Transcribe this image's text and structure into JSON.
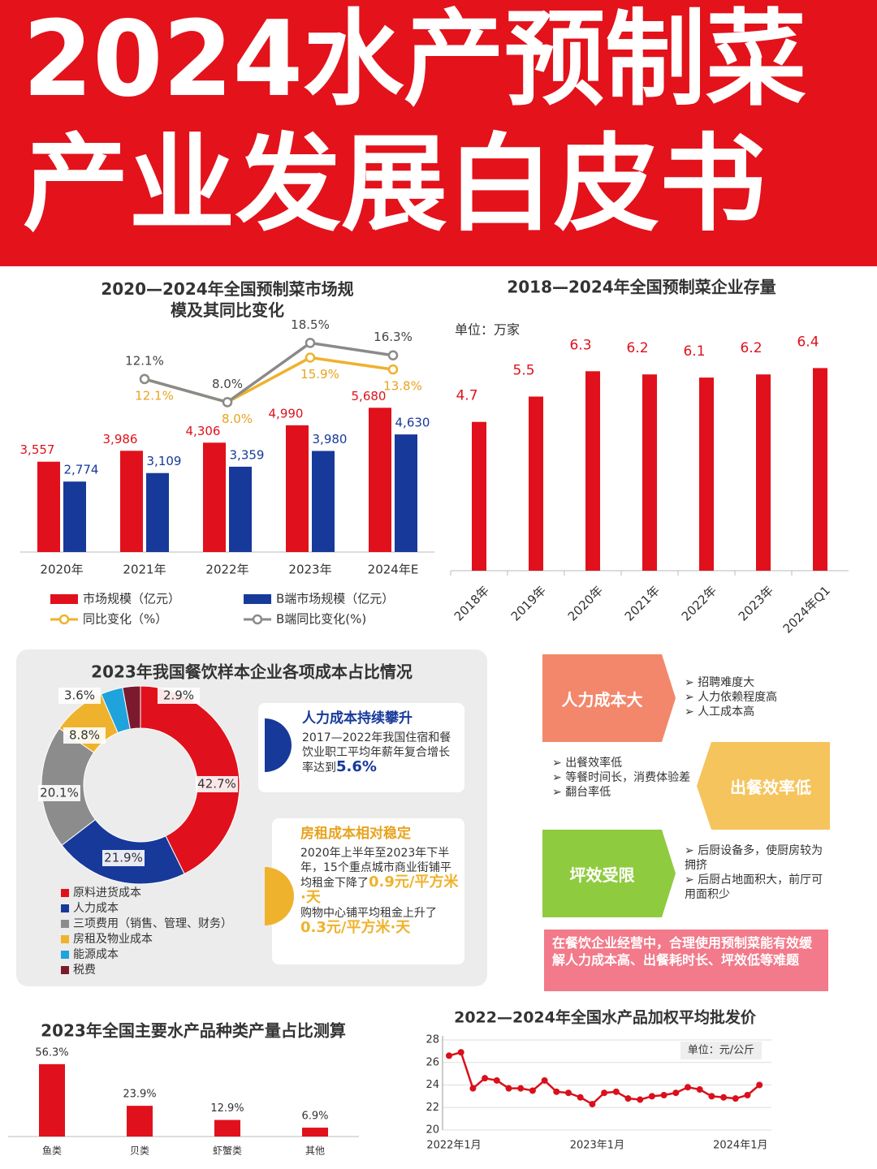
{
  "header": {
    "title_line1": "2024水产预制菜",
    "title_line2": "产业发展白皮书"
  },
  "chart_data": [
    {
      "type": "bar_line",
      "title": "2020—2024年全国预制菜市场规模及其同比变化",
      "categories": [
        "2020年",
        "2021年",
        "2022年",
        "2023年",
        "2024年E"
      ],
      "ylim": [
        0,
        7000
      ],
      "y2lim": [
        -20,
        20
      ],
      "series": [
        {
          "name": "市场规模（亿元）",
          "color": "#e0111c",
          "kind": "bar",
          "values": [
            3557,
            3986,
            4306,
            4990,
            5680
          ],
          "value_labels": [
            "3,557",
            "3,986",
            "4,306",
            "4,990",
            "5,680"
          ]
        },
        {
          "name": "B端市场规模（亿元）",
          "color": "#17399a",
          "kind": "bar",
          "values": [
            2774,
            3109,
            3359,
            3980,
            4630
          ],
          "value_labels": [
            "2,774",
            "3,109",
            "3,359",
            "3,980",
            "4,630"
          ]
        },
        {
          "name": "同比变化（%）",
          "color": "#efb22c",
          "kind": "line",
          "axis": "y2",
          "values": [
            null,
            12.1,
            8.0,
            15.9,
            13.8
          ],
          "value_labels": [
            null,
            "12.1%",
            "8.0%",
            "15.9%",
            "13.8%"
          ]
        },
        {
          "name": "B端同比变化(%)",
          "color": "#8a8a8a",
          "kind": "line",
          "axis": "y2",
          "values": [
            null,
            12.1,
            8.0,
            18.5,
            16.3
          ],
          "value_labels": [
            null,
            "12.1%",
            "8.0%",
            "18.5%",
            "16.3%"
          ]
        }
      ]
    },
    {
      "type": "bar",
      "title": "2018—2024年全国预制菜企业存量",
      "unit": "单位：万家",
      "categories": [
        "2018年",
        "2019年",
        "2020年",
        "2021年",
        "2022年",
        "2023年",
        "2024年Q1"
      ],
      "values": [
        4.7,
        5.5,
        6.3,
        6.2,
        6.1,
        6.2,
        6.4
      ],
      "color": "#e0111c",
      "ylim": [
        0,
        7
      ]
    },
    {
      "type": "donut",
      "title": "2023年我国餐饮样本企业各项成本占比情况",
      "categories": [
        "原料进货成本",
        "人力成本",
        "三项费用（销售、管理、财务）",
        "房租及物业成本",
        "能源成本",
        "税费"
      ],
      "values": [
        42.7,
        21.9,
        20.1,
        8.8,
        3.6,
        2.9
      ],
      "value_labels": [
        "42.7%",
        "21.9%",
        "20.1%",
        "8.8%",
        "3.6%",
        "2.9%"
      ],
      "colors": [
        "#e0111c",
        "#17399a",
        "#8c8c8c",
        "#efb22c",
        "#1ea3dc",
        "#7b1a2c"
      ]
    },
    {
      "type": "bar",
      "title": "2023年全国主要水产品种类产量占比测算",
      "categories": [
        "鱼类",
        "贝类",
        "虾蟹类",
        "其他"
      ],
      "values": [
        56.3,
        23.9,
        12.9,
        6.9
      ],
      "value_labels": [
        "56.3%",
        "23.9%",
        "12.9%",
        "6.9%"
      ],
      "color": "#e0111c",
      "ylim": [
        0,
        60
      ]
    },
    {
      "type": "line",
      "title": "2022—2024年全国水产品加权平均批发价",
      "unit": "单位：元/公斤",
      "categories": [
        "2022年1月",
        null,
        null,
        null,
        null,
        null,
        null,
        null,
        null,
        null,
        null,
        null,
        "2023年1月",
        null,
        null,
        null,
        null,
        null,
        null,
        null,
        null,
        null,
        null,
        null,
        "2024年1月",
        null,
        null
      ],
      "values": [
        26.6,
        26.9,
        23.7,
        24.6,
        24.4,
        23.7,
        23.7,
        23.5,
        24.4,
        23.4,
        23.3,
        22.9,
        22.3,
        23.3,
        23.4,
        22.8,
        22.7,
        23.0,
        23.1,
        23.3,
        23.8,
        23.6,
        23.0,
        22.9,
        22.8,
        23.1,
        24.0
      ],
      "color": "#d9101b",
      "ylim": [
        20,
        28
      ],
      "yticks": [
        20,
        22,
        24,
        26,
        28
      ],
      "grid": true
    }
  ],
  "cost_notes": [
    {
      "title": "人力成本持续攀升",
      "text": "2017—2022年我国住宿和餐饮业职工平均年薪年复合增长率达到",
      "highlight": "5.6%"
    },
    {
      "title": "房租成本相对稳定",
      "text1": "2020年上半年至2023年下半年，15个重点城市商业街铺平均租金下降了",
      "highlight1": "0.9元/平方米·天",
      "text2": "购物中心铺平均租金上升了",
      "highlight2": "0.3元/平方米·天"
    }
  ],
  "pain_points": [
    {
      "label": "人力成本大",
      "items": [
        "招聘难度大",
        "人力依赖程度高",
        "人工成本高"
      ]
    },
    {
      "label": "出餐效率低",
      "items": [
        "出餐效率低",
        "等餐时间长，消费体验差",
        "翻台率低"
      ]
    },
    {
      "label": "坪效受限",
      "items": [
        "后厨设备多，使厨房较为拥挤",
        "后厨占地面积大，前厅可用面积少"
      ]
    }
  ],
  "conclusion": "在餐饮企业经营中，合理使用预制菜能有效缓解人力成本高、出餐耗时长、坪效低等难题"
}
